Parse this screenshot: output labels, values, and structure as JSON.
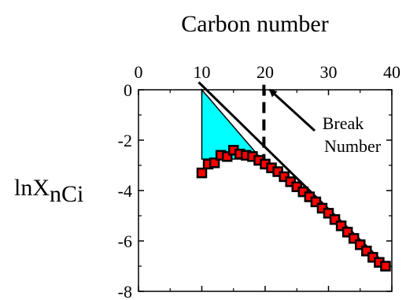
{
  "chart_data": {
    "type": "scatter",
    "title": "",
    "xlabel": "Carbon number",
    "ylabel_main": "lnX",
    "ylabel_sub": "nCi",
    "xlim": [
      0,
      40
    ],
    "ylim": [
      -8,
      0
    ],
    "xticks": [
      0,
      10,
      20,
      30,
      40
    ],
    "yticks": [
      0,
      -2,
      -4,
      -6,
      -8
    ],
    "x_axis_position": "top",
    "grid": false,
    "colors": {
      "markers": "#ff0000",
      "marker_edge": "#000000",
      "shaded_area": "#00ffff",
      "lines": "#000000"
    },
    "series": [
      {
        "points": [
          {
            "x": 10,
            "y": -3.3
          },
          {
            "x": 11,
            "y": -2.95
          },
          {
            "x": 12,
            "y": -2.9
          },
          {
            "x": 13,
            "y": -2.6
          },
          {
            "x": 14,
            "y": -2.65
          },
          {
            "x": 15,
            "y": -2.4
          },
          {
            "x": 16,
            "y": -2.55
          },
          {
            "x": 17,
            "y": -2.6
          },
          {
            "x": 18,
            "y": -2.65
          },
          {
            "x": 19,
            "y": -2.8
          },
          {
            "x": 20,
            "y": -2.95
          },
          {
            "x": 21,
            "y": -3.1
          },
          {
            "x": 22,
            "y": -3.25
          },
          {
            "x": 23,
            "y": -3.45
          },
          {
            "x": 24,
            "y": -3.65
          },
          {
            "x": 25,
            "y": -3.85
          },
          {
            "x": 26,
            "y": -4.05
          },
          {
            "x": 27,
            "y": -4.25
          },
          {
            "x": 28,
            "y": -4.45
          },
          {
            "x": 29,
            "y": -4.7
          },
          {
            "x": 30,
            "y": -4.9
          },
          {
            "x": 31,
            "y": -5.15
          },
          {
            "x": 32,
            "y": -5.4
          },
          {
            "x": 33,
            "y": -5.65
          },
          {
            "x": 34,
            "y": -5.9
          },
          {
            "x": 35,
            "y": -6.15
          },
          {
            "x": 36,
            "y": -6.4
          },
          {
            "x": 37,
            "y": -6.65
          },
          {
            "x": 38,
            "y": -6.85
          },
          {
            "x": 39,
            "y": -7.0
          }
        ]
      }
    ],
    "trend_line": {
      "x1": 9.5,
      "y1": 0.3,
      "x2": 39.2,
      "y2": -7.0
    },
    "shaded_region": [
      {
        "x": 10,
        "y": 0
      },
      {
        "x": 19.4,
        "y": -2.75
      },
      {
        "x": 10,
        "y": -2.75
      }
    ],
    "break_line": {
      "x": 19.8,
      "y_top": 0.2,
      "y_bottom": -2.75
    },
    "annotation": {
      "text_line1": "Break",
      "text_line2": "Number",
      "arrow_to": {
        "x": 20.2,
        "y": 0.1
      }
    }
  }
}
